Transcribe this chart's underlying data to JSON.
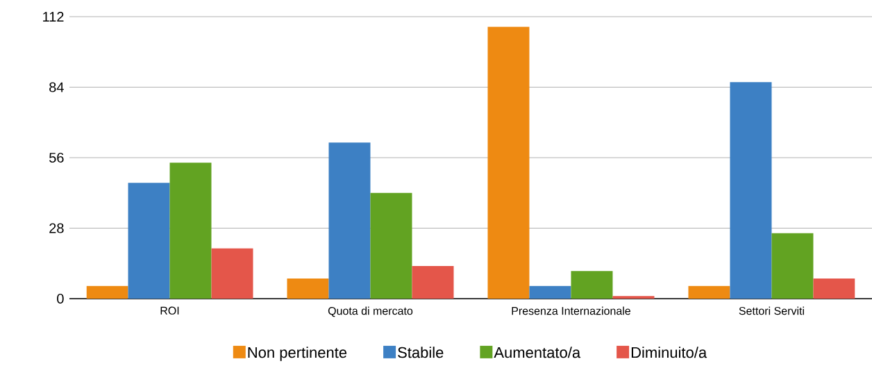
{
  "chart_data": {
    "type": "bar",
    "categories": [
      "ROI",
      "Quota di mercato",
      "Presenza Internazionale",
      "Settori Serviti"
    ],
    "series": [
      {
        "name": "Non pertinente",
        "color": "#ee8a12",
        "values": [
          5,
          8,
          108,
          5
        ]
      },
      {
        "name": "Stabile",
        "color": "#3d80c4",
        "values": [
          46,
          62,
          5,
          86
        ]
      },
      {
        "name": "Aumentato/a",
        "color": "#62a322",
        "values": [
          54,
          42,
          11,
          26
        ]
      },
      {
        "name": "Diminuito/a",
        "color": "#e4564a",
        "values": [
          20,
          13,
          1,
          8
        ]
      }
    ],
    "ylim": [
      0,
      112
    ],
    "yticks": [
      0,
      28,
      56,
      84,
      112
    ],
    "grid": "y",
    "legend": "bottom"
  }
}
